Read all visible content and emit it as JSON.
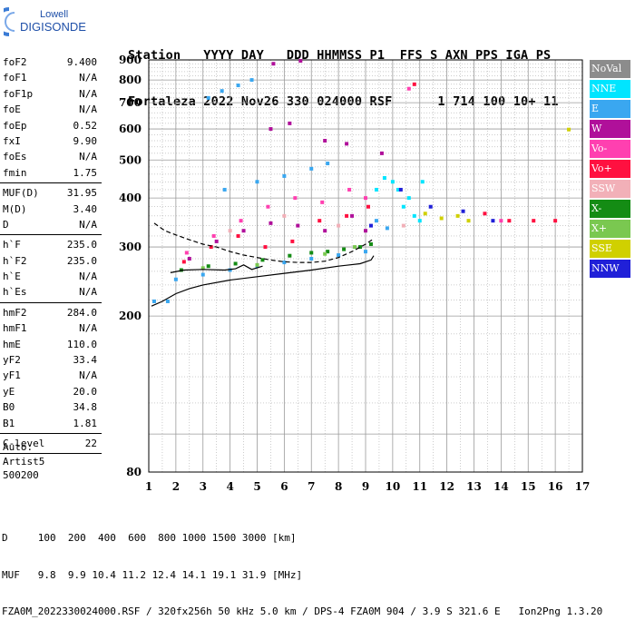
{
  "logo": {
    "line1": "Lowell",
    "line2": "DIGISONDE"
  },
  "header": {
    "line1": "Station   YYYY DAY   DDD HHMMSS P1  FFS S AXN PPS IGA PS",
    "line2": "Fortaleza 2022 Nov26 330 024000 RSF      1 714 100 10+ 11"
  },
  "params": [
    {
      "k": "foF2",
      "v": "9.400"
    },
    {
      "k": "foF1",
      "v": "N/A"
    },
    {
      "k": "foF1p",
      "v": "N/A"
    },
    {
      "k": "foE",
      "v": "N/A"
    },
    {
      "k": "foEp",
      "v": "0.52"
    },
    {
      "k": "fxI",
      "v": "9.90"
    },
    {
      "k": "foEs",
      "v": "N/A"
    },
    {
      "k": "fmin",
      "v": "1.75"
    },
    {
      "sep": true
    },
    {
      "k": "MUF(D)",
      "v": "31.95"
    },
    {
      "k": "M(D)",
      "v": "3.40"
    },
    {
      "k": "D",
      "v": "N/A"
    },
    {
      "sep": true
    },
    {
      "k": "h`F",
      "v": "235.0"
    },
    {
      "k": "h`F2",
      "v": "235.0"
    },
    {
      "k": "h`E",
      "v": "N/A"
    },
    {
      "k": "h`Es",
      "v": "N/A"
    },
    {
      "sep": true
    },
    {
      "k": "hmF2",
      "v": "284.0"
    },
    {
      "k": "hmF1",
      "v": "N/A"
    },
    {
      "k": "hmE",
      "v": "110.0"
    },
    {
      "k": "yF2",
      "v": "33.4"
    },
    {
      "k": "yF1",
      "v": "N/A"
    },
    {
      "k": "yE",
      "v": "20.0"
    },
    {
      "k": "B0",
      "v": "34.8"
    },
    {
      "k": "B1",
      "v": "1.81"
    },
    {
      "sep": true
    },
    {
      "k": "C-level",
      "v": "22"
    },
    {
      "sep": true
    }
  ],
  "auto": [
    "Auto:",
    "Artist5",
    "500200"
  ],
  "legend": [
    {
      "label": "NoVal",
      "color": "#8c8c8c"
    },
    {
      "label": "NNE",
      "color": "#00e5ff"
    },
    {
      "label": "E",
      "color": "#3aa7f0"
    },
    {
      "label": "W",
      "color": "#b0109a"
    },
    {
      "label": "Vo-",
      "color": "#ff40b0"
    },
    {
      "label": "Vo+",
      "color": "#ff1040"
    },
    {
      "label": "SSW",
      "color": "#f2b0b8"
    },
    {
      "label": "X-",
      "color": "#148c14"
    },
    {
      "label": "X+",
      "color": "#7ac850"
    },
    {
      "label": "SSE",
      "color": "#d0d000"
    },
    {
      "label": "NNW",
      "color": "#2020d8"
    }
  ],
  "footer": {
    "line1": "D     100  200  400  600  800 1000 1500 3000 [km]",
    "line2": "MUF   9.8  9.9 10.4 11.2 12.4 14.1 19.1 31.9 [MHz]",
    "line3": "FZA0M_2022330024000.RSF / 320fx256h 50 kHz 5.0 km / DPS-4 FZA0M 904 / 3.9 S 321.6 E   Ion2Png 1.3.20"
  },
  "chart_data": {
    "type": "scatter",
    "x_label": "",
    "y_label": "",
    "xlim": [
      1,
      17
    ],
    "ylim": [
      80,
      900
    ],
    "x_ticks": [
      1,
      2,
      3,
      4,
      5,
      6,
      7,
      8,
      9,
      10,
      11,
      12,
      13,
      14,
      15,
      16,
      17
    ],
    "y_ticks": [
      80,
      200,
      300,
      400,
      500,
      600,
      700,
      800,
      900
    ],
    "y_scale": "log",
    "grid": true,
    "legend_position": "right",
    "series": [
      {
        "name": "X-",
        "points": [
          [
            2.2,
            262
          ],
          [
            3.2,
            268
          ],
          [
            4.2,
            272
          ],
          [
            5.2,
            278
          ],
          [
            6.2,
            285
          ],
          [
            7.0,
            290
          ],
          [
            7.6,
            292
          ],
          [
            8.2,
            296
          ],
          [
            8.8,
            300
          ],
          [
            9.2,
            305
          ]
        ]
      },
      {
        "name": "E",
        "points": [
          [
            2.0,
            248
          ],
          [
            3.0,
            255
          ],
          [
            4.0,
            262
          ],
          [
            5.0,
            268
          ],
          [
            6.0,
            274
          ],
          [
            7.0,
            280
          ],
          [
            8.0,
            286
          ],
          [
            9.0,
            292
          ],
          [
            3.8,
            420
          ],
          [
            5.0,
            440
          ],
          [
            6.0,
            455
          ],
          [
            7.0,
            475
          ],
          [
            7.6,
            490
          ],
          [
            3.2,
            720
          ],
          [
            3.7,
            750
          ],
          [
            4.3,
            775
          ],
          [
            4.8,
            800
          ],
          [
            1.2,
            218
          ],
          [
            1.7,
            218
          ],
          [
            9.4,
            350
          ],
          [
            9.8,
            335
          ]
        ]
      },
      {
        "name": "W",
        "points": [
          [
            2.5,
            280
          ],
          [
            3.5,
            310
          ],
          [
            4.5,
            330
          ],
          [
            5.5,
            345
          ],
          [
            6.5,
            340
          ],
          [
            7.5,
            330
          ],
          [
            8.5,
            360
          ],
          [
            9.0,
            330
          ],
          [
            5.5,
            600
          ],
          [
            6.2,
            620
          ],
          [
            7.5,
            560
          ],
          [
            8.3,
            550
          ],
          [
            9.6,
            520
          ],
          [
            5.6,
            880
          ],
          [
            6.6,
            895
          ]
        ]
      },
      {
        "name": "Vo-",
        "points": [
          [
            2.4,
            290
          ],
          [
            3.4,
            320
          ],
          [
            4.4,
            350
          ],
          [
            5.4,
            380
          ],
          [
            6.4,
            400
          ],
          [
            7.4,
            390
          ],
          [
            8.4,
            420
          ],
          [
            9.0,
            400
          ],
          [
            10.6,
            760
          ],
          [
            14.0,
            350
          ]
        ]
      },
      {
        "name": "Vo+",
        "points": [
          [
            2.3,
            275
          ],
          [
            3.3,
            300
          ],
          [
            4.3,
            320
          ],
          [
            5.3,
            300
          ],
          [
            6.3,
            310
          ],
          [
            7.3,
            350
          ],
          [
            8.3,
            360
          ],
          [
            9.1,
            380
          ],
          [
            10.8,
            780
          ],
          [
            13.4,
            365
          ],
          [
            14.3,
            350
          ],
          [
            15.2,
            350
          ],
          [
            16.0,
            350
          ]
        ]
      },
      {
        "name": "NNE",
        "points": [
          [
            9.4,
            420
          ],
          [
            9.7,
            450
          ],
          [
            10.0,
            440
          ],
          [
            10.2,
            420
          ],
          [
            10.4,
            380
          ],
          [
            10.6,
            400
          ],
          [
            10.8,
            360
          ],
          [
            11.0,
            350
          ],
          [
            11.1,
            440
          ]
        ]
      },
      {
        "name": "SSE",
        "points": [
          [
            11.2,
            365
          ],
          [
            11.8,
            355
          ],
          [
            12.4,
            360
          ],
          [
            12.8,
            350
          ],
          [
            16.5,
            598
          ]
        ]
      },
      {
        "name": "NNW",
        "points": [
          [
            9.2,
            340
          ],
          [
            10.3,
            420
          ],
          [
            11.4,
            380
          ],
          [
            12.6,
            370
          ],
          [
            13.7,
            350
          ]
        ]
      },
      {
        "name": "X+",
        "points": [
          [
            3.0,
            265
          ],
          [
            5.0,
            270
          ],
          [
            7.5,
            288
          ],
          [
            8.6,
            300
          ]
        ]
      },
      {
        "name": "SSW",
        "points": [
          [
            4.0,
            330
          ],
          [
            6.0,
            360
          ],
          [
            8.0,
            340
          ],
          [
            10.4,
            340
          ]
        ]
      }
    ],
    "lines": [
      {
        "name": "upper-trace",
        "points": [
          [
            1.2,
            345
          ],
          [
            1.6,
            330
          ],
          [
            2.0,
            322
          ],
          [
            2.5,
            313
          ],
          [
            3.0,
            305
          ],
          [
            3.5,
            300
          ],
          [
            4.0,
            292
          ],
          [
            4.5,
            286
          ],
          [
            5.0,
            282
          ],
          [
            5.5,
            278
          ],
          [
            6.0,
            275
          ],
          [
            6.5,
            274
          ],
          [
            7.0,
            274
          ],
          [
            7.5,
            276
          ],
          [
            8.0,
            282
          ],
          [
            8.5,
            292
          ],
          [
            9.0,
            305
          ],
          [
            9.3,
            315
          ]
        ]
      },
      {
        "name": "lower-trace",
        "points": [
          [
            1.1,
            212
          ],
          [
            1.5,
            218
          ],
          [
            2.0,
            228
          ],
          [
            2.5,
            235
          ],
          [
            3.0,
            240
          ],
          [
            4.0,
            247
          ],
          [
            5.0,
            252
          ],
          [
            6.0,
            257
          ],
          [
            7.0,
            262
          ],
          [
            8.0,
            268
          ],
          [
            8.8,
            272
          ],
          [
            9.2,
            278
          ],
          [
            9.3,
            285
          ]
        ]
      },
      {
        "name": "small-trace",
        "points": [
          [
            1.8,
            258
          ],
          [
            2.3,
            262
          ],
          [
            3.0,
            263
          ],
          [
            3.8,
            262
          ],
          [
            4.2,
            264
          ],
          [
            4.5,
            270
          ],
          [
            4.8,
            263
          ],
          [
            5.2,
            268
          ]
        ]
      }
    ]
  }
}
